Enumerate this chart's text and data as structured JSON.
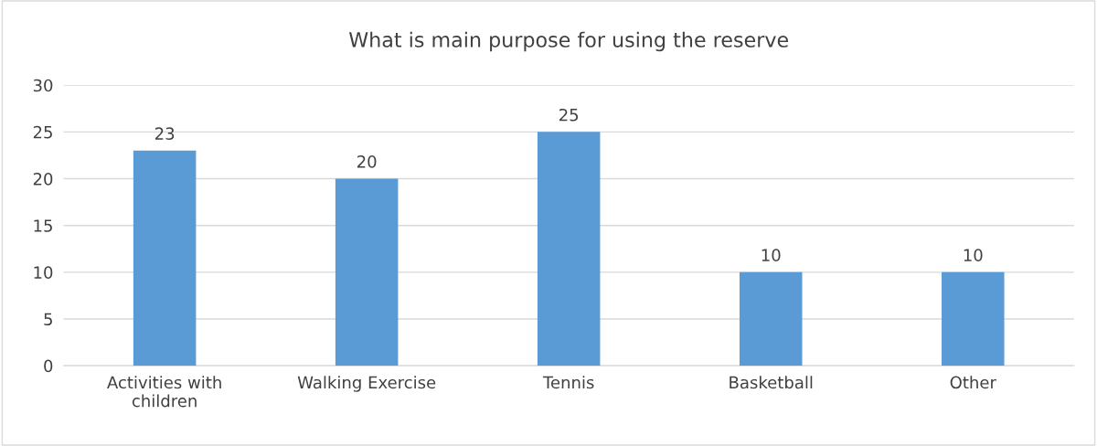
{
  "chart_data": {
    "type": "bar",
    "title": "What is main purpose for using the reserve",
    "categories": [
      "Activities with\nchildren",
      "Walking Exercise",
      "Tennis",
      "Basketball",
      "Other"
    ],
    "values": [
      23,
      20,
      25,
      10,
      10
    ],
    "color": "#5b9bd5",
    "ylim": [
      0,
      30
    ],
    "yticks": [
      0,
      5,
      10,
      15,
      20,
      25,
      30
    ],
    "grid": "y",
    "data_labels": true,
    "legend": false
  }
}
